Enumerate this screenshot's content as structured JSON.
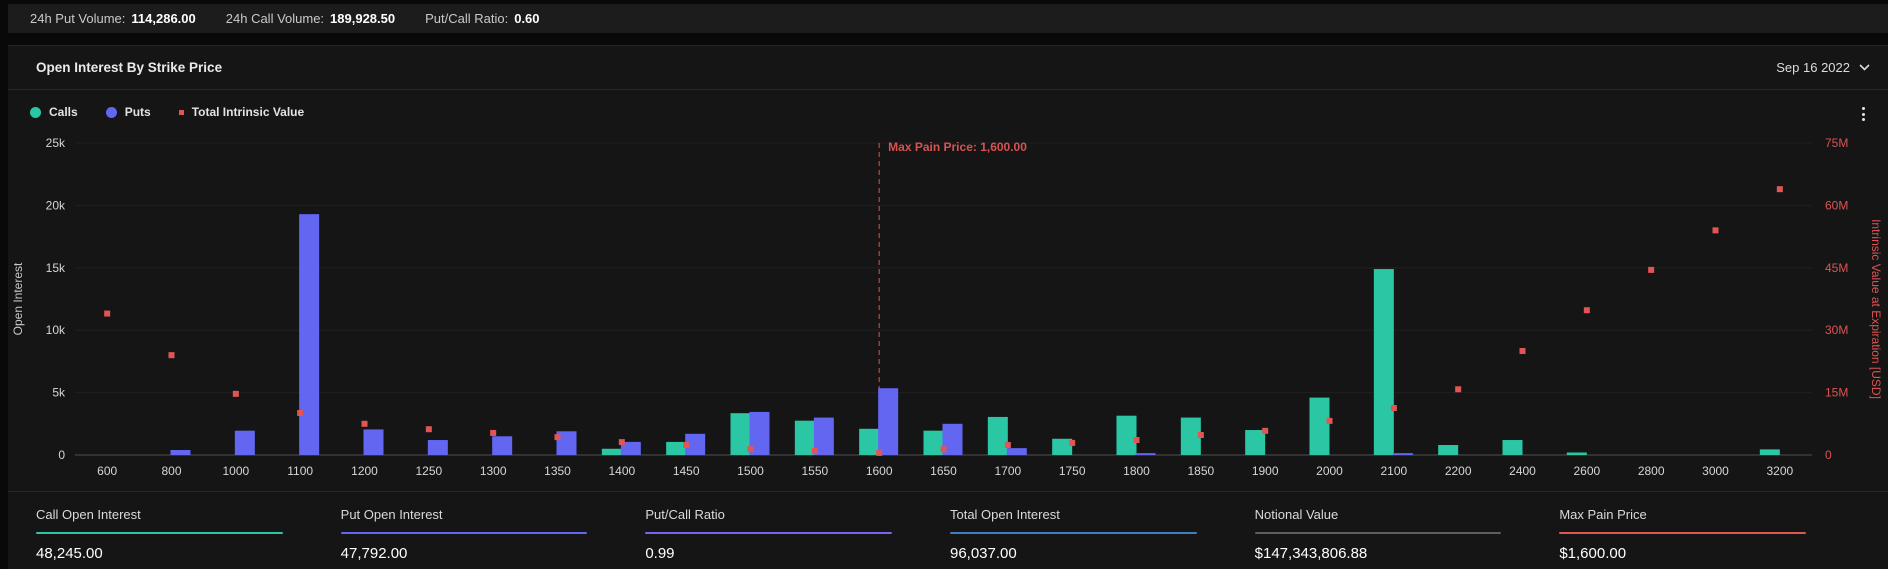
{
  "topbar": {
    "put_volume_label": "24h Put Volume:",
    "put_volume": "114,286.00",
    "call_volume_label": "24h Call Volume:",
    "call_volume": "189,928.50",
    "pc_ratio_label": "Put/Call Ratio:",
    "pc_ratio": "0.60"
  },
  "panel": {
    "title": "Open Interest By Strike Price",
    "date": "Sep 16 2022"
  },
  "legend": [
    {
      "label": "Calls",
      "color": "#2bc7a5",
      "shape": "circle"
    },
    {
      "label": "Puts",
      "color": "#6366f1",
      "shape": "circle"
    },
    {
      "label": "Total Intrinsic Value",
      "color": "#e25555",
      "shape": "square"
    }
  ],
  "chart_data": {
    "type": "bar",
    "title": "Open Interest By Strike Price",
    "grid": true,
    "legend_position": "top-left",
    "categories": [
      "600",
      "800",
      "1000",
      "1100",
      "1200",
      "1250",
      "1300",
      "1350",
      "1400",
      "1450",
      "1500",
      "1550",
      "1600",
      "1650",
      "1700",
      "1750",
      "1800",
      "1850",
      "1900",
      "2000",
      "2100",
      "2200",
      "2400",
      "2600",
      "2800",
      "3000",
      "3200"
    ],
    "series": [
      {
        "name": "Calls",
        "type": "bar",
        "axis": "left",
        "color": "#2bc7a5",
        "values": [
          0,
          0,
          0,
          0,
          0,
          0,
          0,
          0,
          500,
          1050,
          3350,
          2750,
          2100,
          1950,
          3050,
          1300,
          3150,
          3000,
          2000,
          4600,
          14900,
          800,
          1200,
          200,
          0,
          0,
          450
        ]
      },
      {
        "name": "Puts",
        "type": "bar",
        "axis": "left",
        "color": "#6366f1",
        "values": [
          0,
          400,
          1950,
          19300,
          2050,
          1200,
          1500,
          1900,
          1050,
          1700,
          3450,
          3000,
          5350,
          2500,
          550,
          0,
          150,
          0,
          0,
          0,
          150,
          0,
          0,
          0,
          0,
          0,
          0
        ]
      },
      {
        "name": "Total Intrinsic Value",
        "type": "scatter",
        "axis": "right",
        "color": "#e25555",
        "values": [
          34000000,
          24000000,
          14700000,
          10100000,
          7500000,
          6200000,
          5300000,
          4300000,
          3100000,
          2400000,
          1400000,
          1000000,
          500000,
          1400000,
          2400000,
          2900000,
          3600000,
          4800000,
          5800000,
          8200000,
          11300000,
          15800000,
          25000000,
          34800000,
          44500000,
          54000000,
          63900000
        ]
      }
    ],
    "left_axis": {
      "label": "Open Interest",
      "ticks": [
        "0",
        "5k",
        "10k",
        "15k",
        "20k",
        "25k"
      ],
      "min": 0,
      "max": 25000
    },
    "right_axis": {
      "label": "Intrinsic Value at Expiration [USD]",
      "ticks": [
        "0",
        "15M",
        "30M",
        "45M",
        "60M",
        "75M"
      ],
      "min": 0,
      "max": 75000000
    },
    "annotation": {
      "text": "Max Pain Price: 1,600.00",
      "category": "1600",
      "color": "#d95252"
    }
  },
  "stats": {
    "columns": [
      {
        "label": "Call Open Interest",
        "value": "48,245.00",
        "color": "#2bc7a5"
      },
      {
        "label": "Put Open Interest",
        "value": "47,792.00",
        "color": "#6366f1"
      },
      {
        "label": "Put/Call Ratio",
        "value": "0.99",
        "color": "#7a63f1"
      },
      {
        "label": "Total Open Interest",
        "value": "96,037.00",
        "color": "#3f7fc1"
      },
      {
        "label": "Notional Value",
        "value": "$147,343,806.88",
        "color": "#5a5f63"
      },
      {
        "label": "Max Pain Price",
        "value": "$1,600.00",
        "color": "#e05752"
      }
    ]
  }
}
